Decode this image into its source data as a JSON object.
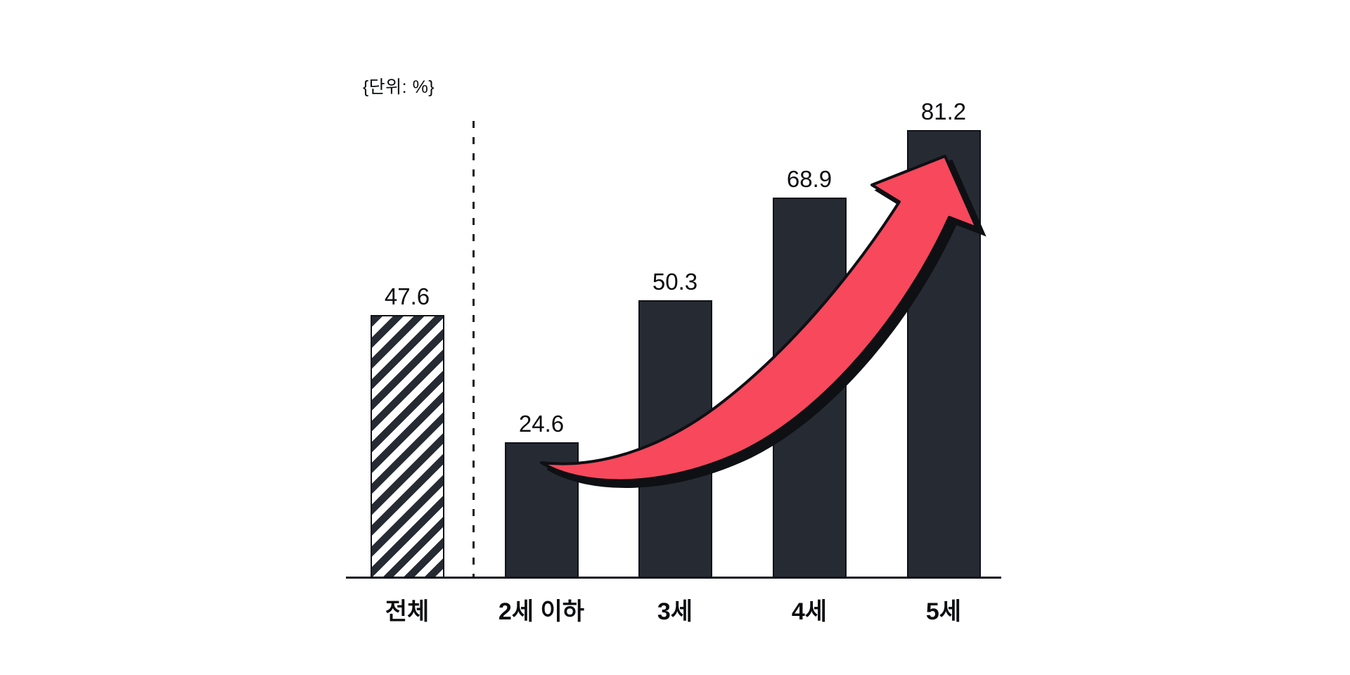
{
  "chart_data": {
    "type": "bar",
    "title": "",
    "unit_label": "{단위: %}",
    "categories": [
      "전체",
      "2세 이하",
      "3세",
      "4세",
      "5세"
    ],
    "values": [
      47.6,
      24.6,
      50.3,
      68.9,
      81.2
    ],
    "value_labels": [
      "47.6",
      "24.6",
      "50.3",
      "68.9",
      "81.2"
    ],
    "bar_styles": [
      "hatched",
      "solid",
      "solid",
      "solid",
      "solid"
    ],
    "xlabel": "",
    "ylabel": "",
    "ylim": [
      0,
      86
    ],
    "grid": false,
    "legend": "none",
    "annotations": [
      {
        "type": "dashed-divider",
        "between": [
          "전체",
          "2세 이하"
        ]
      },
      {
        "type": "trend-arrow",
        "direction": "up",
        "from": "2세 이하",
        "to": "5세"
      }
    ],
    "colors": {
      "bar_fill": "#262a33",
      "bar_border": "#101218",
      "hatch_background": "#ffffff",
      "arrow_fill": "#f7485c",
      "arrow_outline": "#0e1014",
      "axis": "#15171c",
      "text": "#0c0d10"
    }
  }
}
